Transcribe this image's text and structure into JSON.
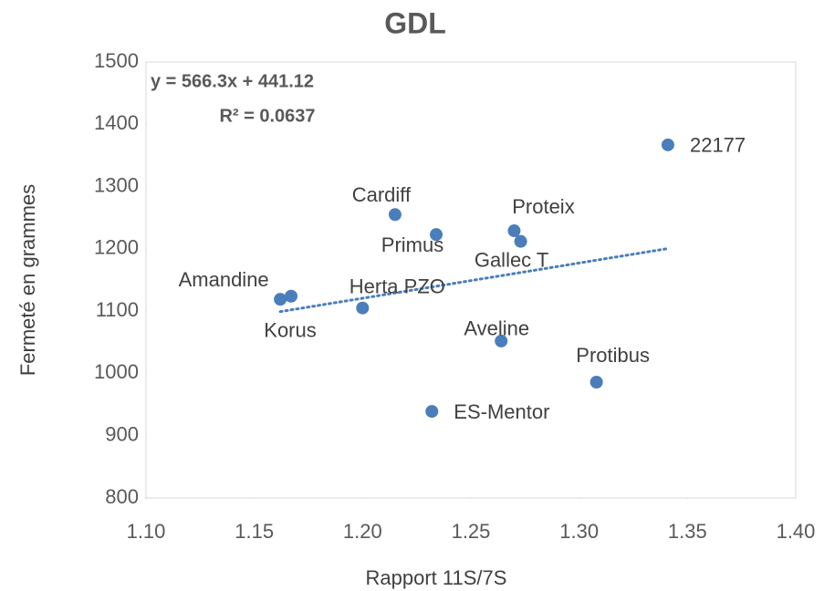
{
  "chart_data": {
    "type": "scatter",
    "title": "GDL",
    "x_label": "Rapport 11S/7S",
    "y_label": "Fermeté en grammes",
    "xlim": [
      1.1,
      1.4
    ],
    "ylim": [
      800,
      1500
    ],
    "xticks": [
      {
        "value": 1.1,
        "label": "1.10"
      },
      1.15,
      {
        "value": 1.2,
        "label": "1.20"
      },
      1.25,
      {
        "value": 1.3,
        "label": "1.30"
      },
      1.35,
      {
        "value": 1.4,
        "label": "1.40"
      }
    ],
    "yticks": [
      800,
      900,
      1000,
      1100,
      1200,
      1300,
      1400,
      1500
    ],
    "grid": false,
    "series": [
      {
        "name": "GDL",
        "color": "#4a7ebb",
        "labels": [
          "22177",
          "Cardiff",
          "Primus",
          "Proteix",
          "Gallec T",
          "Amandine",
          "Korus",
          "Herta PZO",
          "Aveline",
          "Protibus",
          "ES-Mentor"
        ],
        "x": [
          1.341,
          1.215,
          1.234,
          1.27,
          1.273,
          1.162,
          1.167,
          1.2,
          1.264,
          1.308,
          1.232
        ],
        "values": [
          1367,
          1255,
          1223,
          1229,
          1212,
          1119,
          1124,
          1105,
          1052,
          986,
          939
        ]
      }
    ],
    "trendline": {
      "color": "#4a7ebb",
      "equation": "y = 566.3x + 441.12",
      "r2": "R² = 0.0637",
      "x": [
        1.162,
        1.341
      ],
      "values": [
        1099.2,
        1200.5
      ]
    }
  }
}
